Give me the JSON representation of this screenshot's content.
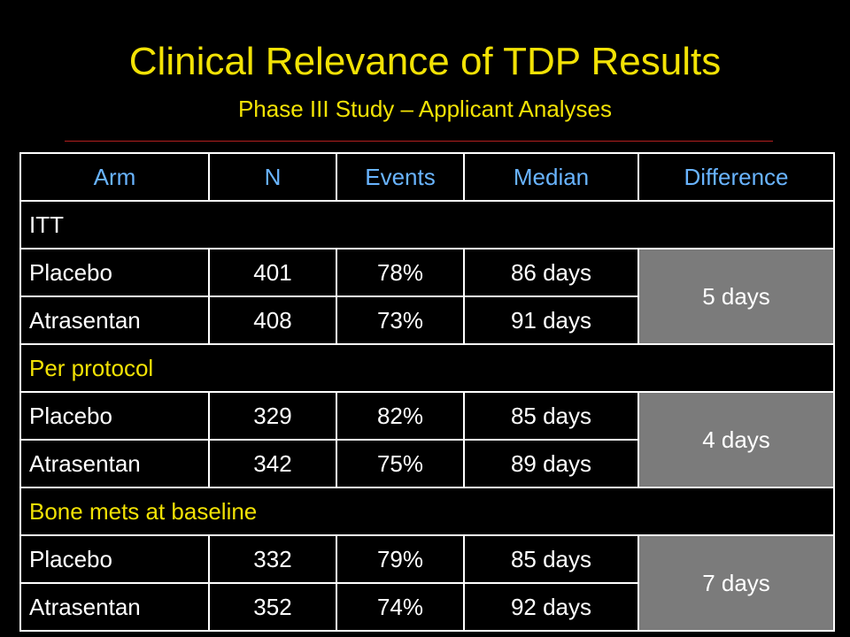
{
  "slide": {
    "title": "Clinical Relevance of TDP Results",
    "subtitle": "Phase III Study – Applicant Analyses"
  },
  "table": {
    "headers": [
      "Arm",
      "N",
      "Events",
      "Median",
      "Difference"
    ],
    "sections": [
      {
        "label": "ITT",
        "label_color": "#ffffff",
        "rows": [
          {
            "arm": "Placebo",
            "n": "401",
            "events": "78%",
            "median": "86 days"
          },
          {
            "arm": "Atrasentan",
            "n": "408",
            "events": "73%",
            "median": "91 days"
          }
        ],
        "difference": "5 days"
      },
      {
        "label": "Per protocol",
        "label_color": "#f2e205",
        "rows": [
          {
            "arm": "Placebo",
            "n": "329",
            "events": "82%",
            "median": "85 days"
          },
          {
            "arm": "Atrasentan",
            "n": "342",
            "events": "75%",
            "median": "89 days"
          }
        ],
        "difference": "4 days"
      },
      {
        "label": "Bone mets at baseline",
        "label_color": "#f2e205",
        "rows": [
          {
            "arm": "Placebo",
            "n": "332",
            "events": "79%",
            "median": "85 days"
          },
          {
            "arm": "Atrasentan",
            "n": "352",
            "events": "74%",
            "median": "92 days"
          }
        ],
        "difference": "7 days"
      }
    ]
  },
  "colors": {
    "background": "#000000",
    "title": "#f2e205",
    "header_text": "#69b4ff",
    "difference_fill": "#7b7b7b",
    "rule": "#b31f1f"
  }
}
